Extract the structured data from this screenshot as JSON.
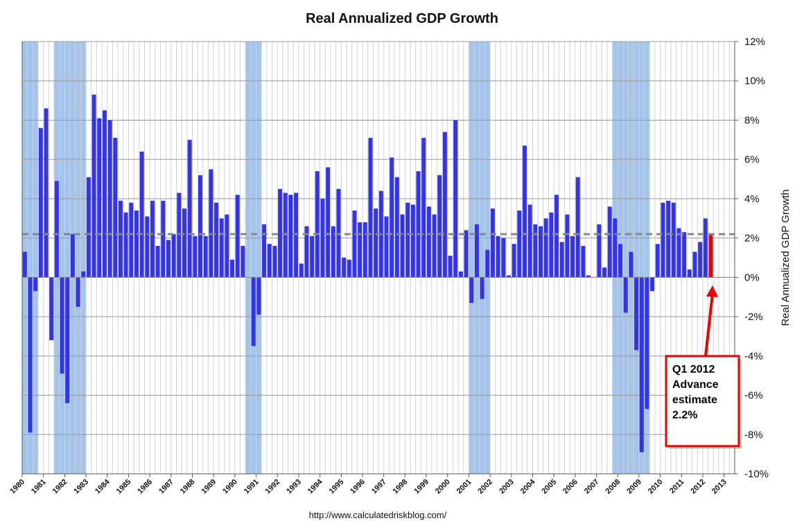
{
  "chart_data": {
    "type": "bar",
    "title": "Real Annualized GDP Growth",
    "ylabel": "Real Annualized GDP Growth",
    "source": "http://www.calculatedriskblog.com/",
    "ylim": [
      -10,
      12
    ],
    "xlim": [
      1980,
      2013.5
    ],
    "y_ticks": [
      "12%",
      "10%",
      "8%",
      "6%",
      "4%",
      "2%",
      "0%",
      "-2%",
      "-4%",
      "-6%",
      "-8%",
      "-10%"
    ],
    "x_ticks": [
      "1980",
      "1981",
      "1982",
      "1983",
      "1984",
      "1985",
      "1986",
      "1987",
      "1988",
      "1989",
      "1990",
      "1991",
      "1992",
      "1993",
      "1994",
      "1995",
      "1996",
      "1997",
      "1998",
      "1999",
      "2000",
      "2001",
      "2002",
      "2003",
      "2004",
      "2005",
      "2006",
      "2007",
      "2008",
      "2009",
      "2010",
      "2011",
      "2012",
      "2013"
    ],
    "grid": true,
    "start_quarter": "1980 Q1",
    "series": [
      {
        "name": "",
        "color": "#3333ee",
        "values": [
          1.3,
          -7.9,
          -0.7,
          7.6,
          8.6,
          -3.2,
          4.9,
          -4.9,
          -6.4,
          2.2,
          -1.5,
          0.3,
          5.1,
          9.3,
          8.1,
          8.5,
          8.0,
          7.1,
          3.9,
          3.3,
          3.8,
          3.4,
          6.4,
          3.1,
          3.9,
          1.6,
          3.9,
          1.9,
          2.2,
          4.3,
          3.5,
          7.0,
          2.1,
          5.2,
          2.1,
          5.5,
          3.8,
          3.0,
          3.2,
          0.9,
          4.2,
          1.6,
          0.0,
          -3.5,
          -1.9,
          2.7,
          1.7,
          1.6,
          4.5,
          4.3,
          4.2,
          4.3,
          0.7,
          2.6,
          2.1,
          5.4,
          4.0,
          5.6,
          2.6,
          4.5,
          1.0,
          0.9,
          3.4,
          2.8,
          2.8,
          7.1,
          3.5,
          4.4,
          3.1,
          6.1,
          5.1,
          3.2,
          3.8,
          3.7,
          5.4,
          7.1,
          3.6,
          3.2,
          5.2,
          7.4,
          1.1,
          8.0,
          0.3,
          2.4,
          -1.3,
          2.7,
          -1.1,
          1.4,
          3.5,
          2.1,
          2.0,
          0.1,
          1.7,
          3.4,
          6.7,
          3.7,
          2.7,
          2.6,
          3.0,
          3.3,
          4.2,
          1.8,
          3.2,
          2.1,
          5.1,
          1.6,
          0.1,
          0.0,
          2.7,
          0.5,
          3.6,
          3.0,
          1.7,
          -1.8,
          1.3,
          -3.7,
          -8.9,
          -6.7,
          -0.7,
          1.7,
          3.8,
          3.9,
          3.8,
          2.5,
          2.3,
          0.4,
          1.3,
          1.8,
          3.0
        ]
      },
      {
        "name": "Q1 2012 Advance estimate",
        "color": "#ee0000",
        "quarter": "2012 Q1",
        "values": [
          2.2
        ]
      }
    ],
    "average_line": {
      "value": 2.2,
      "style": "dashed",
      "color": "#888888"
    },
    "recessions": [
      {
        "start": 1980.0,
        "end": 1980.75
      },
      {
        "start": 1981.5,
        "end": 1983.0
      },
      {
        "start": 1990.5,
        "end": 1991.25
      },
      {
        "start": 2001.0,
        "end": 2002.0
      },
      {
        "start": 2007.75,
        "end": 2009.5
      }
    ],
    "annotation": {
      "lines": [
        "Q1 2012",
        "Advance",
        "estimate",
        "2.2%"
      ],
      "color": "#ee0000"
    }
  }
}
